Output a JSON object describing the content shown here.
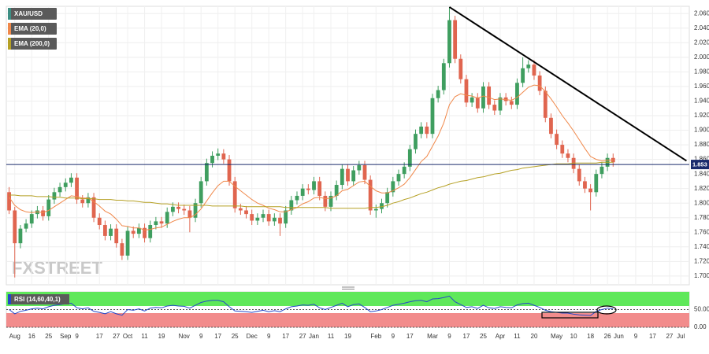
{
  "chart_data": [
    {
      "type": "candlestick",
      "watermark": "FXSTREET",
      "categories": [
        null,
        "Aug",
        null,
        null,
        "16",
        null,
        null,
        "25",
        null,
        null,
        "Sep",
        null,
        "9",
        null,
        null,
        null,
        "17",
        null,
        null,
        "27",
        null,
        "Oct",
        null,
        null,
        "11",
        null,
        null,
        "19",
        null,
        null,
        null,
        "Nov",
        null,
        null,
        "9",
        null,
        null,
        "17",
        null,
        null,
        "25",
        null,
        null,
        "Dec",
        null,
        null,
        "9",
        null,
        null,
        "17",
        null,
        null,
        "27",
        null,
        "Jan",
        null,
        null,
        "11",
        null,
        null,
        "19",
        null,
        null,
        null,
        null,
        "Feb",
        null,
        null,
        "9",
        null,
        null,
        "17",
        null,
        null,
        null,
        "Mar",
        null,
        null,
        "9",
        null,
        null,
        "17",
        null,
        null,
        "25",
        null,
        null,
        "Apr",
        null,
        null,
        "11",
        null,
        null,
        "20",
        null,
        null,
        null,
        "May",
        null,
        null,
        "10",
        null,
        null,
        "18",
        null,
        null,
        "26",
        null,
        "Jun",
        null,
        null,
        "9",
        null,
        null,
        "17",
        null,
        null,
        "27",
        null,
        "Jul",
        null
      ],
      "ylim": [
        1688,
        2070
      ],
      "yticks": [
        {
          "value": 2060,
          "label": "2.060"
        },
        {
          "value": 2040,
          "label": "2.040"
        },
        {
          "value": 2020,
          "label": "2.020"
        },
        {
          "value": 2000,
          "label": "2.000"
        },
        {
          "value": 1980,
          "label": "1.980"
        },
        {
          "value": 1960,
          "label": "1.960"
        },
        {
          "value": 1940,
          "label": "1.940"
        },
        {
          "value": 1920,
          "label": "1.920"
        },
        {
          "value": 1900,
          "label": "1.900"
        },
        {
          "value": 1880,
          "label": "1.880"
        },
        {
          "value": 1860,
          "label": "1.860"
        },
        {
          "value": 1840,
          "label": "1.840"
        },
        {
          "value": 1820,
          "label": "1.820"
        },
        {
          "value": 1800,
          "label": "1.800"
        },
        {
          "value": 1780,
          "label": "1.780"
        },
        {
          "value": 1760,
          "label": "1.760"
        },
        {
          "value": 1740,
          "label": "1.740"
        },
        {
          "value": 1720,
          "label": "1.720"
        },
        {
          "value": 1700,
          "label": "1.700"
        }
      ],
      "grid": true,
      "last_price": {
        "value": 1853,
        "label": "1.853",
        "color": "#1a2a6c"
      },
      "trendline": {
        "x": [
          78,
          120
        ],
        "y": [
          2069,
          1858
        ],
        "color": "#000000"
      },
      "series": [
        {
          "name": "XAU/USD",
          "type": "candlestick",
          "color": "#3d8f84",
          "up_color": "#3f9e5f",
          "down_color": "#e0654f",
          "open": [
            1815,
            1790,
            1745,
            1765,
            1772,
            1785,
            1790,
            1782,
            1805,
            1815,
            1822,
            1828,
            1835,
            1805,
            1800,
            1808,
            1780,
            1770,
            1755,
            1765,
            1745,
            1728,
            1762,
            1758,
            1766,
            1752,
            1770,
            1775,
            1772,
            1788,
            1795,
            1792,
            1790,
            1780,
            1800,
            1830,
            1855,
            1865,
            1868,
            1860,
            1830,
            1793,
            1790,
            1785,
            1776,
            1780,
            1785,
            1775,
            1780,
            1772,
            1790,
            1804,
            1810,
            1820,
            1818,
            1830,
            1810,
            1795,
            1810,
            1825,
            1847,
            1830,
            1845,
            1852,
            1832,
            1790,
            1792,
            1800,
            1815,
            1830,
            1840,
            1850,
            1874,
            1895,
            1905,
            1895,
            1944,
            1955,
            1992,
            2051,
            1998,
            1970,
            1938,
            1945,
            1930,
            1960,
            1935,
            1927,
            1945,
            1940,
            1935,
            1965,
            1985,
            1990,
            1975,
            1954,
            1917,
            1895,
            1880,
            1868,
            1862,
            1847,
            1830,
            1820,
            1815,
            1840,
            1850,
            1862,
            null,
            null,
            null,
            null,
            null,
            null,
            null,
            null,
            null,
            null,
            null,
            null,
            null
          ],
          "high": [
            1822,
            1795,
            1770,
            1778,
            1790,
            1796,
            1796,
            1811,
            1821,
            1828,
            1834,
            1841,
            1841,
            1811,
            1814,
            1814,
            1786,
            1776,
            1771,
            1771,
            1751,
            1768,
            1768,
            1772,
            1772,
            1776,
            1781,
            1781,
            1794,
            1801,
            1801,
            1798,
            1796,
            1806,
            1836,
            1861,
            1871,
            1875,
            1874,
            1866,
            1836,
            1799,
            1796,
            1791,
            1786,
            1791,
            1791,
            1786,
            1786,
            1796,
            1810,
            1816,
            1826,
            1826,
            1836,
            1836,
            1816,
            1816,
            1831,
            1853,
            1853,
            1851,
            1858,
            1858,
            1838,
            1798,
            1806,
            1821,
            1836,
            1846,
            1856,
            1880,
            1901,
            1911,
            1911,
            1950,
            1961,
            1998,
            2069,
            2057,
            2004,
            1976,
            1951,
            1951,
            1966,
            1966,
            1941,
            1951,
            1951,
            1946,
            1971,
            2000,
            1996,
            1996,
            1981,
            1960,
            1923,
            1901,
            1886,
            1874,
            1868,
            1853,
            1836,
            1826,
            1846,
            1856,
            1868,
            1868,
            null,
            null,
            null,
            null,
            null,
            null,
            null,
            null,
            null,
            null,
            null,
            null,
            null
          ],
          "low": [
            1785,
            1698,
            1738,
            1760,
            1766,
            1779,
            1776,
            1776,
            1799,
            1809,
            1816,
            1822,
            1799,
            1794,
            1794,
            1774,
            1764,
            1749,
            1749,
            1739,
            1722,
            1722,
            1752,
            1752,
            1746,
            1746,
            1764,
            1766,
            1766,
            1782,
            1786,
            1784,
            1760,
            1774,
            1794,
            1824,
            1849,
            1859,
            1854,
            1824,
            1787,
            1784,
            1779,
            1770,
            1770,
            1774,
            1769,
            1769,
            1755,
            1766,
            1784,
            1798,
            1804,
            1812,
            1812,
            1804,
            1789,
            1789,
            1804,
            1819,
            1824,
            1824,
            1839,
            1826,
            1784,
            1780,
            1786,
            1794,
            1809,
            1824,
            1834,
            1844,
            1868,
            1889,
            1889,
            1889,
            1938,
            1949,
            1986,
            1992,
            1964,
            1932,
            1932,
            1924,
            1924,
            1929,
            1921,
            1921,
            1934,
            1929,
            1929,
            1959,
            1979,
            1969,
            1948,
            1911,
            1889,
            1874,
            1862,
            1856,
            1841,
            1824,
            1814,
            1790,
            1809,
            1834,
            1844,
            1850,
            null,
            null,
            null,
            null,
            null,
            null,
            null,
            null,
            null,
            null,
            null,
            null,
            null
          ],
          "close": [
            1790,
            1745,
            1765,
            1772,
            1785,
            1790,
            1782,
            1805,
            1815,
            1822,
            1828,
            1835,
            1805,
            1800,
            1808,
            1780,
            1770,
            1755,
            1765,
            1745,
            1728,
            1762,
            1758,
            1766,
            1752,
            1770,
            1775,
            1772,
            1788,
            1795,
            1792,
            1790,
            1780,
            1800,
            1830,
            1855,
            1865,
            1868,
            1860,
            1830,
            1793,
            1790,
            1785,
            1776,
            1780,
            1785,
            1775,
            1780,
            1772,
            1790,
            1804,
            1810,
            1820,
            1818,
            1830,
            1810,
            1795,
            1810,
            1825,
            1847,
            1830,
            1845,
            1852,
            1832,
            1790,
            1792,
            1800,
            1815,
            1830,
            1840,
            1850,
            1874,
            1895,
            1905,
            1895,
            1944,
            1955,
            1992,
            2051,
            1998,
            1970,
            1938,
            1945,
            1930,
            1960,
            1935,
            1927,
            1945,
            1940,
            1935,
            1965,
            1985,
            1990,
            1975,
            1954,
            1917,
            1895,
            1880,
            1868,
            1862,
            1847,
            1830,
            1820,
            1815,
            1840,
            1850,
            1862,
            1856,
            null,
            null,
            null,
            null,
            null,
            null,
            null,
            null,
            null,
            null,
            null,
            null,
            null
          ]
        },
        {
          "name": "EMA (20,0)",
          "color": "#f0884a",
          "values": [
            1808,
            1797,
            1791,
            1788,
            1787,
            1788,
            1787,
            1790,
            1795,
            1800,
            1805,
            1810,
            1809,
            1807,
            1807,
            1802,
            1796,
            1789,
            1785,
            1778,
            1769,
            1768,
            1766,
            1766,
            1763,
            1764,
            1766,
            1767,
            1771,
            1775,
            1778,
            1780,
            1780,
            1784,
            1792,
            1803,
            1814,
            1824,
            1830,
            1830,
            1823,
            1817,
            1811,
            1805,
            1800,
            1797,
            1793,
            1791,
            1788,
            1788,
            1791,
            1794,
            1799,
            1802,
            1807,
            1808,
            1806,
            1807,
            1810,
            1817,
            1819,
            1824,
            1829,
            1830,
            1823,
            1817,
            1814,
            1814,
            1817,
            1821,
            1826,
            1835,
            1846,
            1857,
            1864,
            1878,
            1892,
            1910,
            1935,
            1946,
            1950,
            1948,
            1947,
            1944,
            1947,
            1945,
            1942,
            1943,
            1942,
            1941,
            1945,
            1952,
            1959,
            1962,
            1961,
            1953,
            1943,
            1932,
            1920,
            1910,
            1899,
            1887,
            1875,
            1864,
            1860,
            1858,
            1859,
            1859,
            null,
            null,
            null,
            null,
            null,
            null,
            null,
            null,
            null,
            null,
            null,
            null,
            null
          ]
        },
        {
          "name": "EMA (200,0)",
          "color": "#b5a024",
          "values": [
            1811,
            1811,
            1810,
            1810,
            1810,
            1809,
            1809,
            1809,
            1808,
            1808,
            1807,
            1807,
            1807,
            1806,
            1806,
            1806,
            1805,
            1805,
            1805,
            1804,
            1804,
            1803,
            1803,
            1802,
            1801,
            1801,
            1800,
            1799,
            1799,
            1798,
            1797,
            1797,
            1797,
            1797,
            1797,
            1797,
            1796,
            1796,
            1796,
            1796,
            1796,
            1796,
            1795,
            1795,
            1795,
            1795,
            1795,
            1795,
            1795,
            1794,
            1794,
            1794,
            1794,
            1794,
            1794,
            1794,
            1794,
            1793,
            1793,
            1793,
            1793,
            1793,
            1793,
            1793,
            1794,
            1794,
            1795,
            1797,
            1800,
            1802,
            1805,
            1807,
            1810,
            1813,
            1815,
            1818,
            1821,
            1823,
            1826,
            1828,
            1830,
            1831,
            1833,
            1835,
            1836,
            1838,
            1840,
            1841,
            1843,
            1845,
            1846,
            1848,
            1849,
            1850,
            1851,
            1852,
            1853,
            1854,
            1854,
            1854,
            1855,
            1855,
            1855,
            1855,
            1855,
            1856,
            1856,
            1856,
            null,
            null,
            null,
            null,
            null,
            null,
            null,
            null,
            null,
            null,
            null,
            null,
            null
          ]
        }
      ]
    },
    {
      "type": "line",
      "title": "RSI (14,60,40,1)",
      "ylim": [
        0,
        100
      ],
      "yticks": [
        {
          "value": 50,
          "label": "50.00"
        },
        {
          "value": 0,
          "label": "0.00"
        }
      ],
      "zones": [
        40,
        60
      ],
      "upper_color": "#5fe85a",
      "lower_color": "#f28c8c",
      "color": "#2448c8",
      "values": [
        50,
        38,
        45,
        48,
        52,
        54,
        52,
        58,
        62,
        64,
        66,
        68,
        55,
        52,
        55,
        45,
        42,
        38,
        44,
        38,
        34,
        50,
        48,
        52,
        46,
        54,
        56,
        55,
        60,
        62,
        60,
        59,
        54,
        62,
        70,
        74,
        76,
        76,
        72,
        58,
        46,
        45,
        44,
        42,
        45,
        48,
        44,
        47,
        44,
        52,
        58,
        60,
        63,
        62,
        65,
        55,
        50,
        56,
        62,
        68,
        58,
        64,
        66,
        56,
        44,
        46,
        50,
        56,
        62,
        65,
        68,
        72,
        75,
        76,
        72,
        80,
        81,
        84,
        88,
        72,
        64,
        56,
        58,
        53,
        62,
        55,
        53,
        58,
        56,
        55,
        63,
        67,
        68,
        62,
        56,
        48,
        44,
        42,
        40,
        40,
        37,
        35,
        34,
        33,
        45,
        50,
        54,
        52,
        null,
        null,
        null,
        null,
        null,
        null,
        null,
        null,
        null,
        null,
        null,
        null,
        null
      ]
    }
  ]
}
